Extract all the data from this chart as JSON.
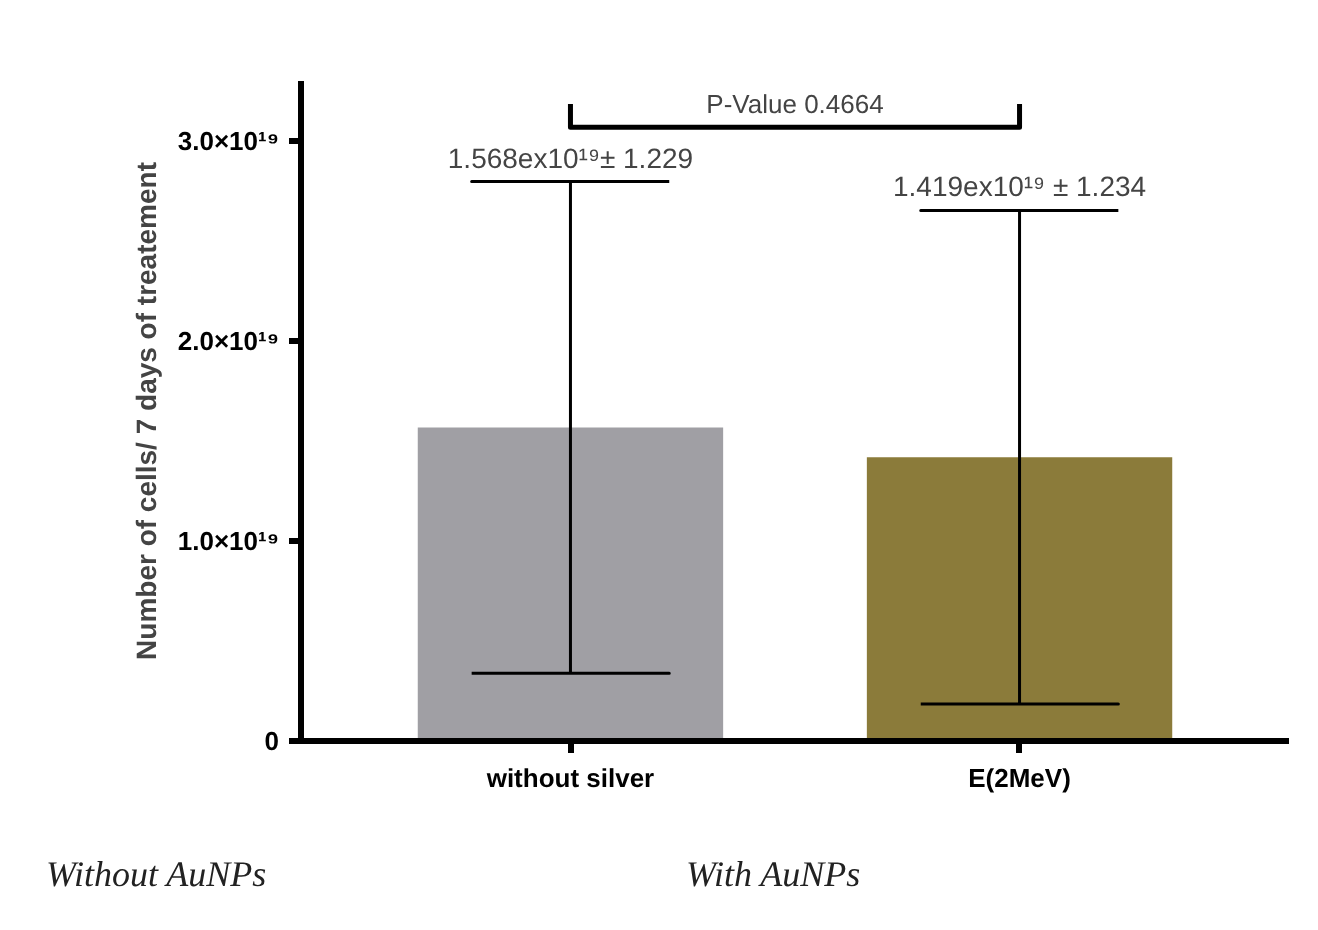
{
  "chart_data": {
    "type": "bar",
    "ylabel": "Number of cells/ 7 days of treatement",
    "categories": [
      "without silver",
      "E(2MeV)"
    ],
    "values": [
      1.568e+19,
      1.419e+19
    ],
    "colors": [
      "#a09fa4",
      "#8b7b3a"
    ],
    "errors": [
      1.229e+19,
      1.234e+19
    ],
    "ylim": [
      0,
      3.3e+19
    ],
    "yticks": [
      0,
      {
        "value": 1e+19,
        "label": "1.0×10¹⁹"
      },
      {
        "value": 2e+19,
        "label": "2.0×10¹⁹"
      },
      {
        "value": 3e+19,
        "label": "3.0×10¹⁹"
      }
    ],
    "grid": false,
    "annotations": [
      "1.568ex10¹⁹± 1.229",
      "1.419ex10¹⁹ ± 1.234",
      "P-Value 0.4664",
      "Without AuNPs",
      "With AuNPs"
    ]
  }
}
